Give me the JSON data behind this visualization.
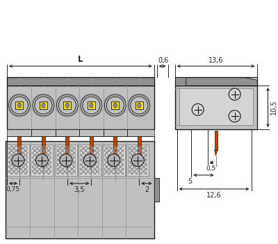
{
  "bg_color": "#ffffff",
  "gray_body": "#c0c0c0",
  "gray_dark": "#909090",
  "gray_med": "#b0b0b0",
  "gray_light": "#d4d4d4",
  "yellow_color": "#f0e000",
  "orange_color": "#b84800",
  "black_color": "#1a1a1a",
  "dim_color": "#222222",
  "n_poles": 6,
  "figw": 4.0,
  "figh": 3.51,
  "dpi": 100
}
